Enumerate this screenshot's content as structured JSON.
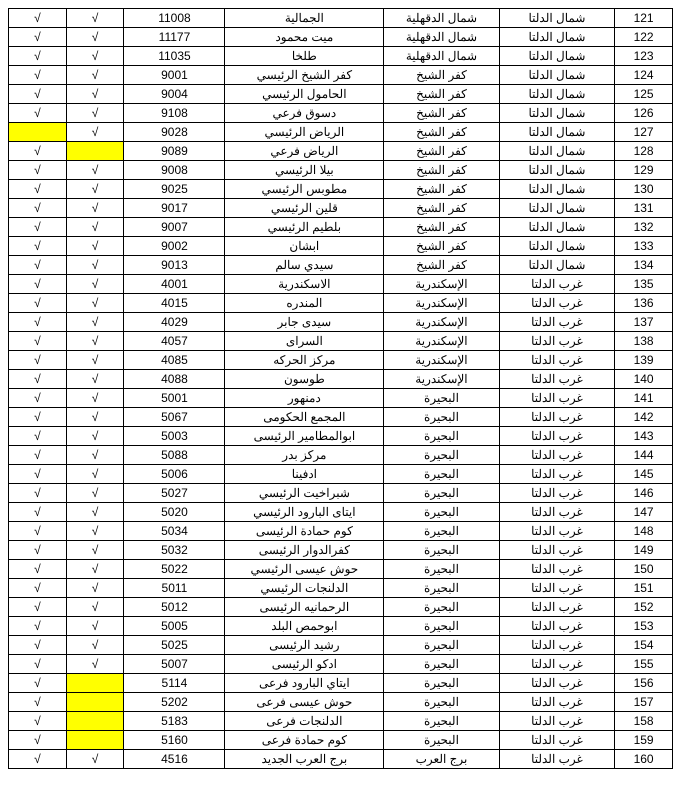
{
  "table": {
    "columns": [
      "chk1",
      "chk2",
      "code",
      "branch",
      "governorate",
      "region",
      "num"
    ],
    "highlight_color": "#ffff00",
    "border_color": "#000000",
    "bg_color": "#ffffff",
    "font_size": 12,
    "check_mark": "√",
    "rows": [
      {
        "chk1": "√",
        "chk2": "√",
        "code": "11008",
        "branch": "الجمالية",
        "gov": "شمال الدقهلية",
        "region": "شمال الدلتا",
        "num": "121"
      },
      {
        "chk1": "√",
        "chk2": "√",
        "code": "11177",
        "branch": "ميت محمود",
        "gov": "شمال الدقهلية",
        "region": "شمال الدلتا",
        "num": "122"
      },
      {
        "chk1": "√",
        "chk2": "√",
        "code": "11035",
        "branch": "طلخا",
        "gov": "شمال الدقهلية",
        "region": "شمال الدلتا",
        "num": "123"
      },
      {
        "chk1": "√",
        "chk2": "√",
        "code": "9001",
        "branch": "كفر الشيخ الرئيسي",
        "gov": "كفر الشيخ",
        "region": "شمال الدلتا",
        "num": "124"
      },
      {
        "chk1": "√",
        "chk2": "√",
        "code": "9004",
        "branch": "الحامول الرئيسي",
        "gov": "كفر الشيخ",
        "region": "شمال الدلتا",
        "num": "125"
      },
      {
        "chk1": "√",
        "chk2": "√",
        "code": "9108",
        "branch": "دسوق فرعي",
        "gov": "كفر الشيخ",
        "region": "شمال الدلتا",
        "num": "126"
      },
      {
        "chk1": "",
        "chk1_hl": true,
        "chk2": "√",
        "code": "9028",
        "branch": "الرياض الرئيسي",
        "gov": "كفر الشيخ",
        "region": "شمال الدلتا",
        "num": "127"
      },
      {
        "chk1": "√",
        "chk2": "",
        "chk2_hl": true,
        "code": "9089",
        "branch": "الرياض فرعي",
        "gov": "كفر الشيخ",
        "region": "شمال الدلتا",
        "num": "128"
      },
      {
        "chk1": "√",
        "chk2": "√",
        "code": "9008",
        "branch": "بيلا الرئيسي",
        "gov": "كفر الشيخ",
        "region": "شمال الدلتا",
        "num": "129"
      },
      {
        "chk1": "√",
        "chk2": "√",
        "code": "9025",
        "branch": "مطوبس الرئيسي",
        "gov": "كفر الشيخ",
        "region": "شمال الدلتا",
        "num": "130"
      },
      {
        "chk1": "√",
        "chk2": "√",
        "code": "9017",
        "branch": "قلين الرئيسي",
        "gov": "كفر الشيخ",
        "region": "شمال الدلتا",
        "num": "131"
      },
      {
        "chk1": "√",
        "chk2": "√",
        "code": "9007",
        "branch": "بلطيم الرئيسي",
        "gov": "كفر الشيخ",
        "region": "شمال الدلتا",
        "num": "132"
      },
      {
        "chk1": "√",
        "chk2": "√",
        "code": "9002",
        "branch": "ابشان",
        "gov": "كفر الشيخ",
        "region": "شمال الدلتا",
        "num": "133"
      },
      {
        "chk1": "√",
        "chk2": "√",
        "code": "9013",
        "branch": "سيدي سالم",
        "gov": "كفر الشيخ",
        "region": "شمال الدلتا",
        "num": "134"
      },
      {
        "chk1": "√",
        "chk2": "√",
        "code": "4001",
        "branch": "الاسكندرية",
        "gov": "الإسكندرية",
        "region": "غرب الدلتا",
        "num": "135"
      },
      {
        "chk1": "√",
        "chk2": "√",
        "code": "4015",
        "branch": "المندره",
        "gov": "الإسكندرية",
        "region": "غرب الدلتا",
        "num": "136"
      },
      {
        "chk1": "√",
        "chk2": "√",
        "code": "4029",
        "branch": "سيدى جابر",
        "gov": "الإسكندرية",
        "region": "غرب الدلتا",
        "num": "137"
      },
      {
        "chk1": "√",
        "chk2": "√",
        "code": "4057",
        "branch": "السراى",
        "gov": "الإسكندرية",
        "region": "غرب الدلتا",
        "num": "138"
      },
      {
        "chk1": "√",
        "chk2": "√",
        "code": "4085",
        "branch": "مركز الحركه",
        "gov": "الإسكندرية",
        "region": "غرب الدلتا",
        "num": "139"
      },
      {
        "chk1": "√",
        "chk2": "√",
        "code": "4088",
        "branch": "طوسون",
        "gov": "الإسكندرية",
        "region": "غرب الدلتا",
        "num": "140"
      },
      {
        "chk1": "√",
        "chk2": "√",
        "code": "5001",
        "branch": "دمنهور",
        "gov": "البحيرة",
        "region": "غرب الدلتا",
        "num": "141"
      },
      {
        "chk1": "√",
        "chk2": "√",
        "code": "5067",
        "branch": "المجمع الحكومى",
        "gov": "البحيرة",
        "region": "غرب الدلتا",
        "num": "142"
      },
      {
        "chk1": "√",
        "chk2": "√",
        "code": "5003",
        "branch": "ابوالمطامير الرئيسى",
        "gov": "البحيرة",
        "region": "غرب الدلتا",
        "num": "143"
      },
      {
        "chk1": "√",
        "chk2": "√",
        "code": "5088",
        "branch": "مركز بدر",
        "gov": "البحيرة",
        "region": "غرب الدلتا",
        "num": "144"
      },
      {
        "chk1": "√",
        "chk2": "√",
        "code": "5006",
        "branch": "ادفينا",
        "gov": "البحيرة",
        "region": "غرب الدلتا",
        "num": "145"
      },
      {
        "chk1": "√",
        "chk2": "√",
        "code": "5027",
        "branch": "شبراخيت الرئيسي",
        "gov": "البحيرة",
        "region": "غرب الدلتا",
        "num": "146"
      },
      {
        "chk1": "√",
        "chk2": "√",
        "code": "5020",
        "branch": "ايتاى البارود الرئيسي",
        "gov": "البحيرة",
        "region": "غرب الدلتا",
        "num": "147"
      },
      {
        "chk1": "√",
        "chk2": "√",
        "code": "5034",
        "branch": "كوم حمادة الرئيسى",
        "gov": "البحيرة",
        "region": "غرب الدلتا",
        "num": "148"
      },
      {
        "chk1": "√",
        "chk2": "√",
        "code": "5032",
        "branch": "كفرالدوار الرئيسى",
        "gov": "البحيرة",
        "region": "غرب الدلتا",
        "num": "149"
      },
      {
        "chk1": "√",
        "chk2": "√",
        "code": "5022",
        "branch": "حوش عيسى الرئيسي",
        "gov": "البحيرة",
        "region": "غرب الدلتا",
        "num": "150"
      },
      {
        "chk1": "√",
        "chk2": "√",
        "code": "5011",
        "branch": "الدلنجات الرئيسي",
        "gov": "البحيرة",
        "region": "غرب الدلتا",
        "num": "151"
      },
      {
        "chk1": "√",
        "chk2": "√",
        "code": "5012",
        "branch": "الرحمانيه الرئيسى",
        "gov": "البحيرة",
        "region": "غرب الدلتا",
        "num": "152"
      },
      {
        "chk1": "√",
        "chk2": "√",
        "code": "5005",
        "branch": "ابوحمص البلد",
        "gov": "البحيرة",
        "region": "غرب الدلتا",
        "num": "153"
      },
      {
        "chk1": "√",
        "chk2": "√",
        "code": "5025",
        "branch": "رشيد الرئيسى",
        "gov": "البحيرة",
        "region": "غرب الدلتا",
        "num": "154"
      },
      {
        "chk1": "√",
        "chk2": "√",
        "code": "5007",
        "branch": "ادكو الرئيسى",
        "gov": "البحيرة",
        "region": "غرب الدلتا",
        "num": "155"
      },
      {
        "chk1": "√",
        "chk2": "",
        "chk2_hl": true,
        "code": "5114",
        "branch": "ايتاي البارود فرعى",
        "gov": "البحيرة",
        "region": "غرب الدلتا",
        "num": "156"
      },
      {
        "chk1": "√",
        "chk2": "",
        "chk2_hl": true,
        "code": "5202",
        "branch": "حوش عيسى فرعى",
        "gov": "البحيرة",
        "region": "غرب الدلتا",
        "num": "157"
      },
      {
        "chk1": "√",
        "chk2": "",
        "chk2_hl": true,
        "code": "5183",
        "branch": "الدلنجات فرعى",
        "gov": "البحيرة",
        "region": "غرب الدلتا",
        "num": "158"
      },
      {
        "chk1": "√",
        "chk2": "",
        "chk2_hl": true,
        "code": "5160",
        "branch": "كوم حمادة فرعى",
        "gov": "البحيرة",
        "region": "غرب الدلتا",
        "num": "159"
      },
      {
        "chk1": "√",
        "chk2": "√",
        "code": "4516",
        "branch": "برج العرب الجديد",
        "gov": "برج العرب",
        "region": "غرب الدلتا",
        "num": "160"
      }
    ]
  }
}
